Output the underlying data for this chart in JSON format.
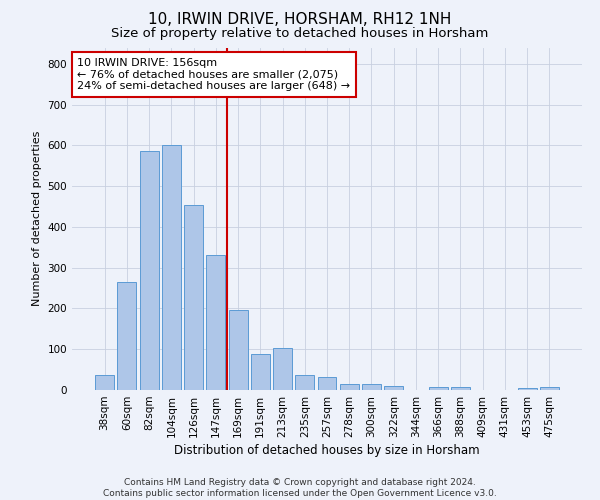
{
  "title": "10, IRWIN DRIVE, HORSHAM, RH12 1NH",
  "subtitle": "Size of property relative to detached houses in Horsham",
  "xlabel": "Distribution of detached houses by size in Horsham",
  "ylabel": "Number of detached properties",
  "categories": [
    "38sqm",
    "60sqm",
    "82sqm",
    "104sqm",
    "126sqm",
    "147sqm",
    "169sqm",
    "191sqm",
    "213sqm",
    "235sqm",
    "257sqm",
    "278sqm",
    "300sqm",
    "322sqm",
    "344sqm",
    "366sqm",
    "388sqm",
    "409sqm",
    "431sqm",
    "453sqm",
    "475sqm"
  ],
  "values": [
    37,
    265,
    585,
    600,
    453,
    330,
    195,
    88,
    102,
    37,
    33,
    14,
    15,
    10,
    0,
    8,
    8,
    0,
    0,
    5,
    8
  ],
  "bar_color": "#aec6e8",
  "bar_edge_color": "#5b9bd5",
  "vline_x_index": 5,
  "vline_color": "#cc0000",
  "annotation_text": "10 IRWIN DRIVE: 156sqm\n← 76% of detached houses are smaller (2,075)\n24% of semi-detached houses are larger (648) →",
  "annotation_box_color": "#ffffff",
  "annotation_box_edge_color": "#cc0000",
  "ylim": [
    0,
    840
  ],
  "yticks": [
    0,
    100,
    200,
    300,
    400,
    500,
    600,
    700,
    800
  ],
  "background_color": "#eef2fa",
  "footer": "Contains HM Land Registry data © Crown copyright and database right 2024.\nContains public sector information licensed under the Open Government Licence v3.0.",
  "title_fontsize": 11,
  "subtitle_fontsize": 9.5,
  "xlabel_fontsize": 8.5,
  "ylabel_fontsize": 8,
  "tick_fontsize": 7.5,
  "annotation_fontsize": 8
}
